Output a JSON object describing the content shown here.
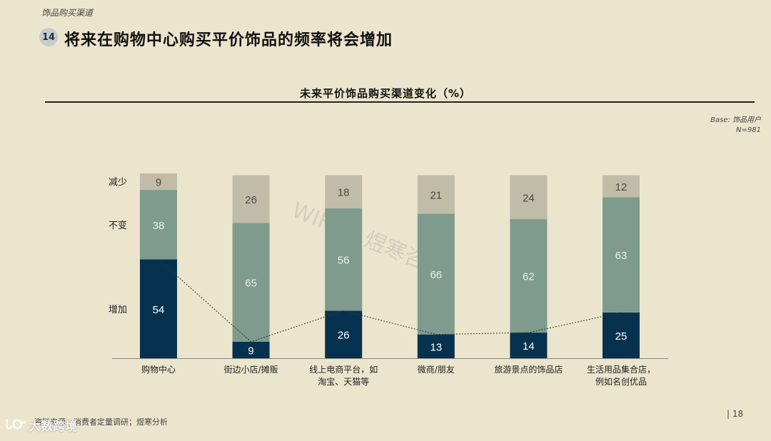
{
  "section": "饰品购买渠道",
  "slide_number": "14",
  "slide_title": "将来在购物中心购买平价饰品的频率将会增加",
  "base": {
    "line1": "Base: 饰品用户",
    "line2": "N=981"
  },
  "watermark": "WIFIFT 煜寒咨询",
  "source": "资料来源：消费者定量调研；煜寒分析",
  "page_number": "| 18",
  "logo": {
    "mark": "ᏓᏅ",
    "text": "大数跨境"
  },
  "colors": {
    "increase": "#07324f",
    "unchanged": "#7f9b8d",
    "decrease": "#c1bca8",
    "background": "#ebe5cd"
  },
  "chart_data": {
    "type": "bar",
    "stacked": true,
    "title": "未来平价饰品购买渠道变化（%）",
    "categories": [
      "购物中心",
      "街边小店/摊贩",
      "线上电商平台，如淘宝、天猫等",
      "微商/朋友",
      "旅游景点的饰品店",
      "生活用品集合店，例如名创优品"
    ],
    "category_lines": [
      [
        "购物中心"
      ],
      [
        "街边小店/摊贩"
      ],
      [
        "线上电商平台，如",
        "淘宝、天猫等"
      ],
      [
        "微商/朋友"
      ],
      [
        "旅游景点的饰品店"
      ],
      [
        "生活用品集合店，",
        "例如名创优品"
      ]
    ],
    "series": [
      {
        "name": "增加",
        "values": [
          54,
          9,
          26,
          13,
          14,
          25
        ]
      },
      {
        "name": "不变",
        "values": [
          38,
          65,
          56,
          66,
          62,
          63
        ]
      },
      {
        "name": "减少",
        "values": [
          9,
          26,
          18,
          21,
          24,
          12
        ]
      }
    ],
    "ylim": [
      0,
      100
    ],
    "legend_position": "left",
    "connector_line": "dotted line linking tops of 增加 segments"
  }
}
